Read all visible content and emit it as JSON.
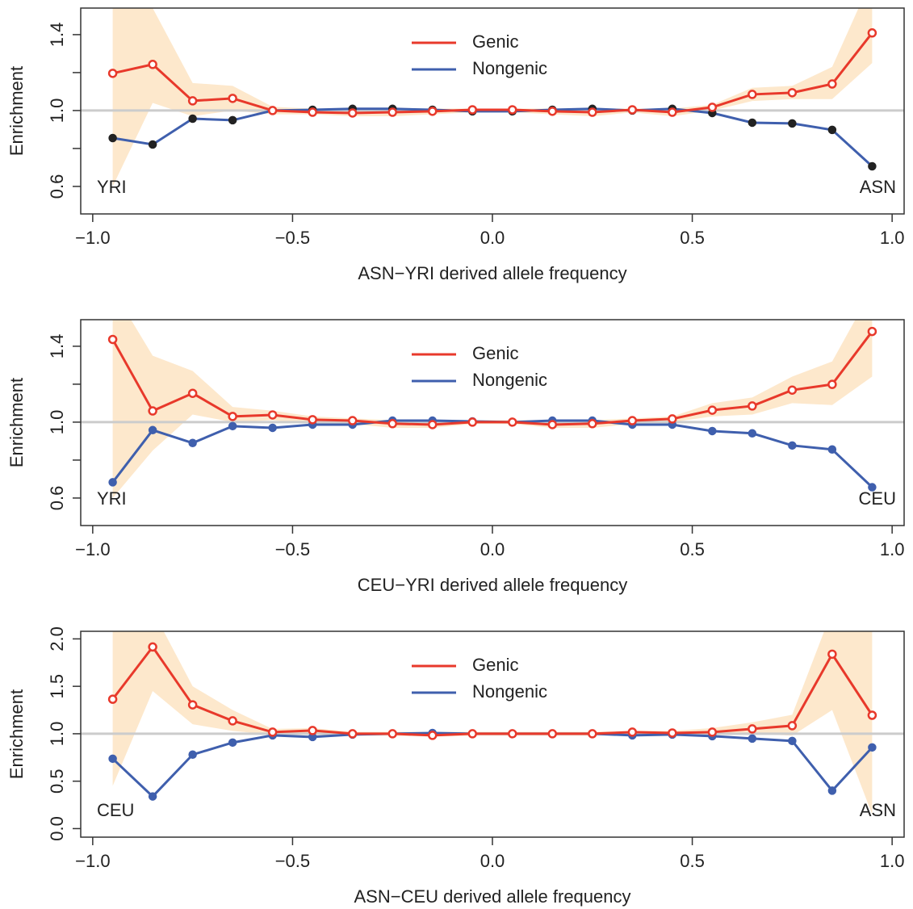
{
  "chart_data": [
    {
      "type": "line",
      "x": [
        -0.95,
        -0.85,
        -0.75,
        -0.65,
        -0.55,
        -0.45,
        -0.35,
        -0.25,
        -0.15,
        -0.05,
        0.05,
        0.15,
        0.25,
        0.35,
        0.45,
        0.55,
        0.65,
        0.75,
        0.85,
        0.95
      ],
      "xlim": [
        -1.03,
        1.03
      ],
      "ylim": [
        0.455,
        1.54
      ],
      "xticks": [
        {
          "value": -1,
          "label": "−1.0"
        },
        {
          "value": -0.5,
          "label": "−0.5"
        },
        {
          "value": 0,
          "label": "0.0"
        },
        0.5,
        {
          "value": 1,
          "label": "1.0"
        }
      ],
      "yticks": [
        0.6,
        {
          "value": 1,
          "label": "1.0"
        },
        1.4
      ],
      "yminorticks": [
        0.8,
        1.2
      ],
      "xlabel": "ASN−YRI derived allele frequency",
      "ylabel": "Enrichment",
      "annotations": [
        "YRI",
        "ASN"
      ],
      "hline": 1,
      "hline_color": "#cccccc",
      "series": [
        {
          "name": "Genic",
          "color": "#e8392b",
          "point_color": "#e8392b",
          "band_color": "#fde8cc",
          "values": [
            1.196,
            1.243,
            1.051,
            1.064,
            1.0,
            0.991,
            0.987,
            0.991,
            0.996,
            1.004,
            1.004,
            0.996,
            0.991,
            1.004,
            0.991,
            1.017,
            1.085,
            1.094,
            1.14,
            1.409
          ],
          "band_upper": [
            1.7,
            1.54,
            1.145,
            1.13,
            1.02,
            1.01,
            1.01,
            1.01,
            1.01,
            1.01,
            1.01,
            1.01,
            1.01,
            1.01,
            1.01,
            1.03,
            1.12,
            1.13,
            1.23,
            1.7
          ],
          "band_lower": [
            0.6,
            1.04,
            0.97,
            1.0,
            0.98,
            0.98,
            0.97,
            0.97,
            0.98,
            0.99,
            0.99,
            0.98,
            0.97,
            0.99,
            0.97,
            1.0,
            1.05,
            1.06,
            1.06,
            1.25
          ]
        },
        {
          "name": "Nongenic",
          "color": "#3f5fad",
          "point_color": "#222222",
          "values": [
            0.855,
            0.821,
            0.957,
            0.949,
            1.0,
            1.004,
            1.009,
            1.009,
            1.004,
            0.996,
            0.996,
            1.004,
            1.009,
            1.0,
            1.009,
            0.987,
            0.936,
            0.932,
            0.898,
            0.706
          ]
        }
      ]
    },
    {
      "type": "line",
      "x": [
        -0.95,
        -0.85,
        -0.75,
        -0.65,
        -0.55,
        -0.45,
        -0.35,
        -0.25,
        -0.15,
        -0.05,
        0.05,
        0.15,
        0.25,
        0.35,
        0.45,
        0.55,
        0.65,
        0.75,
        0.85,
        0.95
      ],
      "xlim": [
        -1.03,
        1.03
      ],
      "ylim": [
        0.455,
        1.54
      ],
      "xticks": [
        {
          "value": -1,
          "label": "−1.0"
        },
        {
          "value": -0.5,
          "label": "−0.5"
        },
        {
          "value": 0,
          "label": "0.0"
        },
        0.5,
        {
          "value": 1,
          "label": "1.0"
        }
      ],
      "yticks": [
        0.6,
        {
          "value": 1,
          "label": "1.0"
        },
        1.4
      ],
      "yminorticks": [
        0.8,
        1.2
      ],
      "xlabel": "CEU−YRI derived allele frequency",
      "ylabel": "Enrichment",
      "annotations": [
        "YRI",
        "CEU"
      ],
      "hline": 1,
      "hline_color": "#cccccc",
      "series": [
        {
          "name": "Genic",
          "color": "#e8392b",
          "point_color": "#e8392b",
          "band_color": "#fde8cc",
          "values": [
            1.436,
            1.059,
            1.152,
            1.03,
            1.038,
            1.013,
            1.008,
            0.992,
            0.987,
            1.0,
            1.0,
            0.987,
            0.992,
            1.008,
            1.017,
            1.063,
            1.085,
            1.169,
            1.199,
            1.478
          ],
          "band_upper": [
            1.7,
            1.35,
            1.27,
            1.08,
            1.06,
            1.03,
            1.02,
            1.01,
            1.01,
            1.01,
            1.01,
            1.01,
            1.01,
            1.02,
            1.03,
            1.1,
            1.13,
            1.24,
            1.32,
            1.7
          ],
          "band_lower": [
            0.6,
            0.85,
            1.04,
            1.0,
            1.01,
            0.99,
            0.99,
            0.97,
            0.97,
            0.99,
            0.99,
            0.97,
            0.97,
            0.99,
            1.0,
            1.03,
            1.04,
            1.1,
            1.09,
            1.24
          ]
        },
        {
          "name": "Nongenic",
          "color": "#3f5fad",
          "point_color": "#3f5fad",
          "values": [
            0.683,
            0.958,
            0.89,
            0.979,
            0.97,
            0.987,
            0.987,
            1.008,
            1.008,
            1.004,
            1.0,
            1.008,
            1.008,
            0.987,
            0.987,
            0.953,
            0.941,
            0.877,
            0.856,
            0.657
          ]
        }
      ]
    },
    {
      "type": "line",
      "x": [
        -0.95,
        -0.85,
        -0.75,
        -0.65,
        -0.55,
        -0.45,
        -0.35,
        -0.25,
        -0.15,
        -0.05,
        0.05,
        0.15,
        0.25,
        0.35,
        0.45,
        0.55,
        0.65,
        0.75,
        0.85,
        0.95
      ],
      "xlim": [
        -1.03,
        1.03
      ],
      "ylim": [
        -0.09,
        2.08
      ],
      "xticks": [
        {
          "value": -1,
          "label": "−1.0"
        },
        {
          "value": -0.5,
          "label": "−0.5"
        },
        {
          "value": 0,
          "label": "0.0"
        },
        0.5,
        {
          "value": 1,
          "label": "1.0"
        }
      ],
      "yticks": [
        {
          "value": 0,
          "label": "0.0"
        },
        0.5,
        {
          "value": 1,
          "label": "1.0"
        },
        1.5,
        {
          "value": 2,
          "label": "2.0"
        }
      ],
      "xlabel": "ASN−CEU derived allele frequency",
      "ylabel": "Enrichment",
      "annotations": [
        "CEU",
        "ASN"
      ],
      "hline": 1,
      "hline_color": "#cccccc",
      "series": [
        {
          "name": "Genic",
          "color": "#e8392b",
          "point_color": "#e8392b",
          "band_color": "#fde8cc",
          "values": [
            1.364,
            1.915,
            1.305,
            1.136,
            1.017,
            1.034,
            1.0,
            1.0,
            0.983,
            1.0,
            1.0,
            1.0,
            1.0,
            1.017,
            1.008,
            1.017,
            1.051,
            1.085,
            1.839,
            1.195
          ],
          "band_upper": [
            2.3,
            2.3,
            1.5,
            1.25,
            1.05,
            1.06,
            1.02,
            1.02,
            1.02,
            1.02,
            1.02,
            1.02,
            1.02,
            1.03,
            1.03,
            1.06,
            1.12,
            1.2,
            2.3,
            2.3
          ],
          "band_lower": [
            0.45,
            1.45,
            1.1,
            1.03,
            0.99,
            0.99,
            0.98,
            0.98,
            0.97,
            0.98,
            0.98,
            0.98,
            0.98,
            0.99,
            0.99,
            0.99,
            1.0,
            0.98,
            1.25,
            0.15
          ]
        },
        {
          "name": "Nongenic",
          "color": "#3f5fad",
          "point_color": "#3f5fad",
          "values": [
            0.737,
            0.339,
            0.78,
            0.907,
            0.983,
            0.966,
            0.992,
            1.0,
            1.008,
            1.0,
            1.0,
            1.0,
            1.0,
            0.983,
            0.992,
            0.975,
            0.949,
            0.924,
            0.4,
            0.856
          ]
        }
      ]
    }
  ]
}
